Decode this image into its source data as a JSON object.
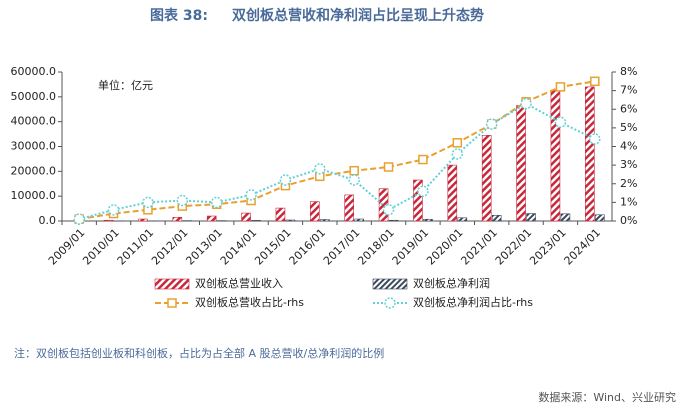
{
  "chart_data": {
    "type": "bar",
    "figure_label": "图表 38:",
    "title": "双创板总营收和净利润占比呈现上升态势",
    "unit_label": "单位：亿元",
    "note": "注：双创板包括创业板和科创板，占比为占全部 A 股总营收/总净利润的比例",
    "source": "数据来源：Wind、兴业研究",
    "categories": [
      "2009/01",
      "2010/01",
      "2011/01",
      "2012/01",
      "2013/01",
      "2014/01",
      "2015/01",
      "2016/01",
      "2017/01",
      "2018/01",
      "2019/01",
      "2020/01",
      "2021/01",
      "2022/01",
      "2023/01",
      "2024/01"
    ],
    "series": [
      {
        "name": "双创板总营业收入",
        "kind": "bar",
        "color": "#c8283c",
        "values": [
          0,
          300,
          800,
          1500,
          2000,
          3200,
          5200,
          7800,
          10500,
          13000,
          16500,
          22500,
          34500,
          46500,
          52500,
          54000
        ]
      },
      {
        "name": "双创板总净利润",
        "kind": "bar",
        "color": "#3c4a5c",
        "values": [
          0,
          30,
          80,
          150,
          150,
          250,
          400,
          600,
          800,
          300,
          700,
          1300,
          2300,
          3000,
          2900,
          2500
        ]
      },
      {
        "name": "双创板总营收占比-rhs",
        "kind": "line",
        "axis": "y2",
        "color": "#e8a030",
        "values": [
          0.1,
          0.4,
          0.6,
          0.8,
          0.9,
          1.1,
          1.9,
          2.4,
          2.7,
          2.9,
          3.3,
          4.2,
          5.2,
          6.4,
          7.2,
          7.5
        ]
      },
      {
        "name": "双创板总净利润占比-rhs",
        "kind": "line",
        "axis": "y2",
        "color": "#5fd0d8",
        "values": [
          0.1,
          0.6,
          1.0,
          1.1,
          1.0,
          1.4,
          2.2,
          2.8,
          2.2,
          0.6,
          1.6,
          3.6,
          5.2,
          6.3,
          5.3,
          4.4
        ]
      }
    ],
    "ylim": [
      0,
      60000
    ],
    "yticks": [
      {
        "value": 0,
        "label": "0.0"
      },
      {
        "value": 10000,
        "label": "10000.0"
      },
      {
        "value": 20000,
        "label": "20000.0"
      },
      {
        "value": 30000,
        "label": "30000.0"
      },
      {
        "value": 40000,
        "label": "40000.0"
      },
      {
        "value": 50000,
        "label": "50000.0"
      },
      {
        "value": 60000,
        "label": "60000.0"
      }
    ],
    "y2lim": [
      0,
      8
    ],
    "y2ticks": [
      {
        "value": 0,
        "label": "0%"
      },
      {
        "value": 1,
        "label": "1%"
      },
      {
        "value": 2,
        "label": "2%"
      },
      {
        "value": 3,
        "label": "3%"
      },
      {
        "value": 4,
        "label": "4%"
      },
      {
        "value": 5,
        "label": "5%"
      },
      {
        "value": 6,
        "label": "6%"
      },
      {
        "value": 7,
        "label": "7%"
      },
      {
        "value": 8,
        "label": "8%"
      }
    ],
    "grid": false
  }
}
